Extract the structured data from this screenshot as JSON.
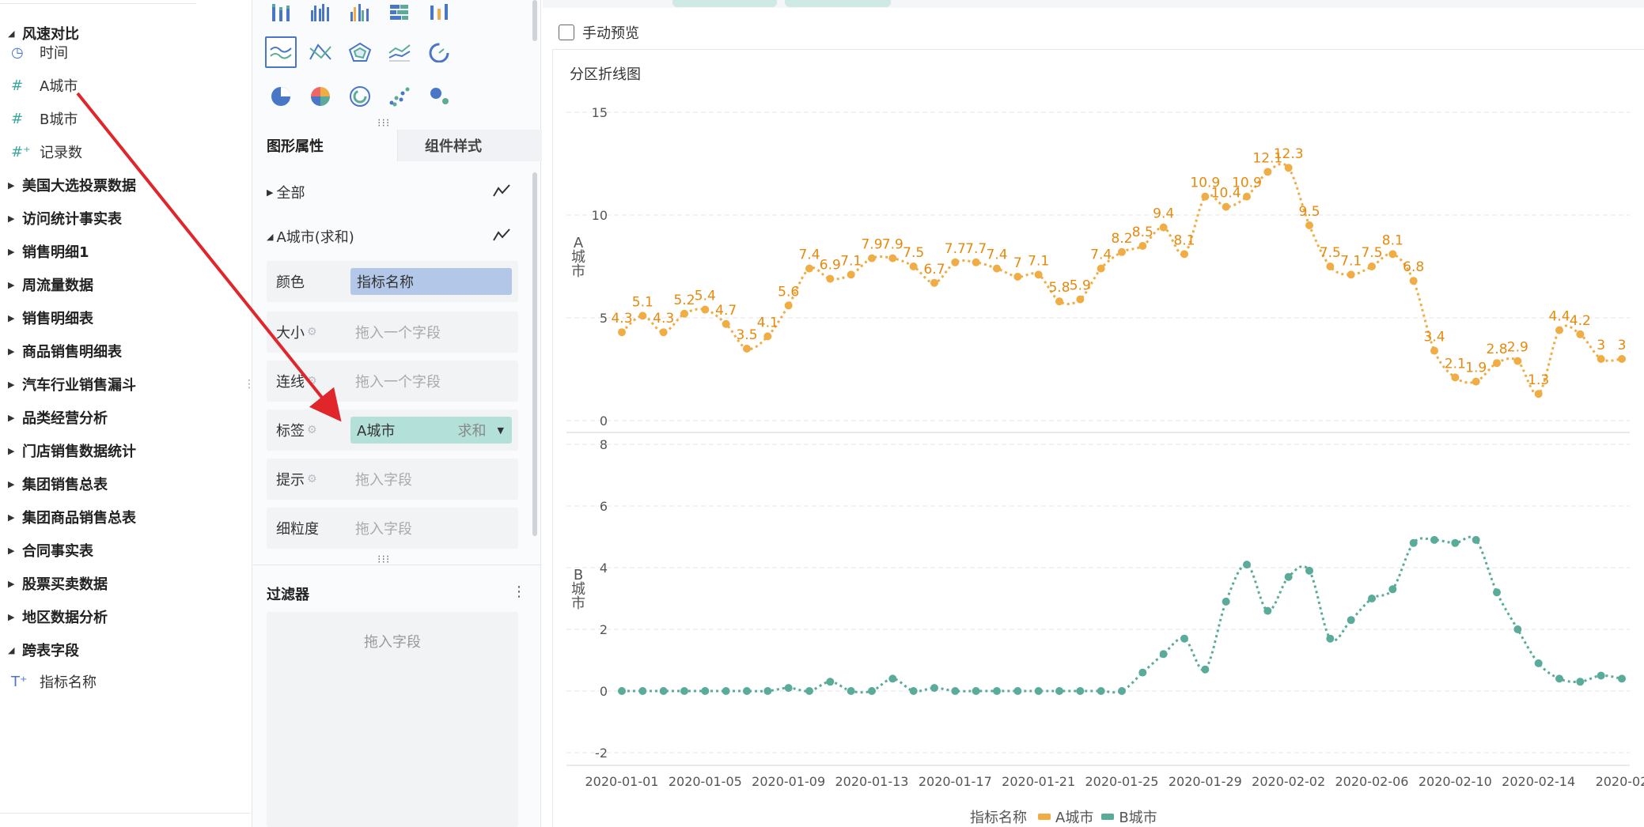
{
  "field_tree": {
    "expanded_group": "风速对比",
    "fields": [
      {
        "name": "时间",
        "icon": "clock-icon",
        "symbol": "◷",
        "kind": "time"
      },
      {
        "name": "A城市",
        "icon": "number-icon",
        "symbol": "#",
        "kind": "num"
      },
      {
        "name": "B城市",
        "icon": "number-icon",
        "symbol": "#",
        "kind": "num"
      },
      {
        "name": "记录数",
        "icon": "number-plus-icon",
        "symbol": "#⁺",
        "kind": "num"
      }
    ],
    "groups": [
      "美国大选投票数据",
      "访问统计事实表",
      "销售明细1",
      "周流量数据",
      "销售明细表",
      "商品销售明细表",
      "汽车行业销售漏斗",
      "品类经营分析",
      "门店销售数据统计",
      "集团销售总表",
      "集团商品销售总表",
      "合同事实表",
      "股票买卖数据",
      "地区数据分析"
    ],
    "cross_group": "跨表字段",
    "cross_field": {
      "name": "指标名称",
      "icon": "text-field-icon",
      "symbol": "T⁺"
    }
  },
  "config": {
    "tabs": [
      "图形属性",
      "组件样式"
    ],
    "all_label": "全部",
    "series_label": "A城市(求和)",
    "props": [
      {
        "label": "颜色",
        "value": "指标名称",
        "type": "pill-blue"
      },
      {
        "label": "大小",
        "value": "拖入一个字段",
        "type": "placeholder"
      },
      {
        "label": "连线",
        "value": "拖入一个字段",
        "type": "placeholder"
      },
      {
        "label": "标签",
        "value": "A城市",
        "agg": "求和",
        "type": "pill-teal"
      },
      {
        "label": "提示",
        "value": "拖入字段",
        "type": "placeholder"
      },
      {
        "label": "细粒度",
        "value": "拖入字段",
        "type": "placeholder"
      }
    ],
    "filter_title": "过滤器",
    "filter_placeholder": "拖入字段"
  },
  "preview_label": "手动预览",
  "colors": {
    "a_city": "#f0ad45",
    "b_city": "#5aab9a",
    "accent": "#4a76c8",
    "arrow": "#e0262b"
  },
  "chart_data": {
    "type": "line",
    "title": "分区折线图",
    "x": [
      "2020-01-01",
      "2020-01-02",
      "2020-01-03",
      "2020-01-04",
      "2020-01-05",
      "2020-01-06",
      "2020-01-07",
      "2020-01-08",
      "2020-01-09",
      "2020-01-10",
      "2020-01-11",
      "2020-01-12",
      "2020-01-13",
      "2020-01-14",
      "2020-01-15",
      "2020-01-16",
      "2020-01-17",
      "2020-01-18",
      "2020-01-19",
      "2020-01-20",
      "2020-01-21",
      "2020-01-22",
      "2020-01-23",
      "2020-01-24",
      "2020-01-25",
      "2020-01-26",
      "2020-01-27",
      "2020-01-28",
      "2020-01-29",
      "2020-01-30",
      "2020-01-31",
      "2020-02-01",
      "2020-02-02",
      "2020-02-03",
      "2020-02-04",
      "2020-02-05",
      "2020-02-06",
      "2020-02-07",
      "2020-02-08",
      "2020-02-09",
      "2020-02-10",
      "2020-02-11",
      "2020-02-12",
      "2020-02-13",
      "2020-02-14",
      "2020-02-15",
      "2020-02-16",
      "2020-02-17",
      "2020-02-18"
    ],
    "x_ticks": [
      "2020-01-01",
      "2020-01-05",
      "2020-01-09",
      "2020-01-13",
      "2020-01-17",
      "2020-01-21",
      "2020-01-25",
      "2020-01-29",
      "2020-02-02",
      "2020-02-06",
      "2020-02-10",
      "2020-02-14",
      "2020-02"
    ],
    "legend_title": "指标名称",
    "series": [
      {
        "name": "A城市",
        "axis_label": "A城市",
        "ylim": [
          0,
          15
        ],
        "yticks": [
          0,
          5,
          10,
          15
        ],
        "values": [
          4.3,
          5.1,
          4.3,
          5.2,
          5.4,
          4.7,
          3.5,
          4.1,
          5.6,
          7.4,
          6.9,
          7.1,
          7.9,
          7.9,
          7.5,
          6.7,
          7.7,
          7.7,
          7.4,
          7,
          7.1,
          5.8,
          5.9,
          7.4,
          8.2,
          8.5,
          9.4,
          8.1,
          10.9,
          10.4,
          10.9,
          12.1,
          12.3,
          9.5,
          7.5,
          7.1,
          7.5,
          8.1,
          6.8,
          3.4,
          2.1,
          1.9,
          2.8,
          2.9,
          1.3,
          4.4,
          4.2,
          3,
          3
        ]
      },
      {
        "name": "B城市",
        "axis_label": "B城市",
        "ylim": [
          -2,
          8
        ],
        "yticks": [
          -2,
          0,
          2,
          4,
          6,
          8
        ],
        "values": [
          0,
          0,
          0,
          0,
          0,
          0,
          0,
          0,
          0.1,
          0,
          0.3,
          0,
          0,
          0.4,
          0,
          0.1,
          0,
          0,
          0,
          0,
          0,
          0,
          0,
          0,
          0,
          0.6,
          1.2,
          1.7,
          0.7,
          2.9,
          4.1,
          2.6,
          3.7,
          3.9,
          1.7,
          2.3,
          3,
          3.3,
          4.8,
          4.9,
          4.8,
          4.9,
          3.2,
          2,
          0.9,
          0.4,
          0.3,
          0.5,
          0.4
        ]
      }
    ]
  }
}
